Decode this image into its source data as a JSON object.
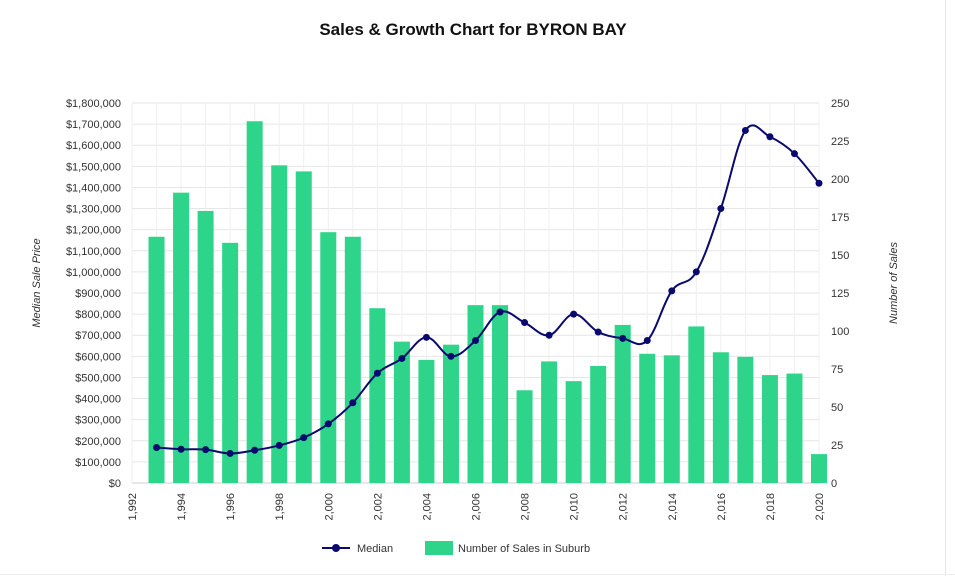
{
  "chart_data": {
    "type": "bar",
    "title": "Sales & Growth Chart for BYRON BAY",
    "xlabel": "",
    "y_left_label": "Median Sale Price",
    "y_right_label": "Number of Sales",
    "x_range": [
      1992,
      2020
    ],
    "x_tick_values": [
      1992,
      1994,
      1996,
      1998,
      2000,
      2002,
      2004,
      2006,
      2008,
      2010,
      2012,
      2014,
      2016,
      2018,
      2020
    ],
    "x_tick_labels": [
      "1,992",
      "1,994",
      "1,996",
      "1,998",
      "2,000",
      "2,002",
      "2,004",
      "2,006",
      "2,008",
      "2,010",
      "2,012",
      "2,014",
      "2,016",
      "2,018",
      "2,020"
    ],
    "y_left_range": [
      0,
      1800000
    ],
    "y_left_tick_values": [
      0,
      100000,
      200000,
      300000,
      400000,
      500000,
      600000,
      700000,
      800000,
      900000,
      1000000,
      1100000,
      1200000,
      1300000,
      1400000,
      1500000,
      1600000,
      1700000,
      1800000
    ],
    "y_left_tick_labels": [
      "$0",
      "$100,000",
      "$200,000",
      "$300,000",
      "$400,000",
      "$500,000",
      "$600,000",
      "$700,000",
      "$800,000",
      "$900,000",
      "$1,000,000",
      "$1,100,000",
      "$1,200,000",
      "$1,300,000",
      "$1,400,000",
      "$1,500,000",
      "$1,600,000",
      "$1,700,000",
      "$1,800,000"
    ],
    "y_right_range": [
      0,
      250
    ],
    "y_right_tick_values": [
      0,
      25,
      50,
      75,
      100,
      125,
      150,
      175,
      200,
      225,
      250
    ],
    "y_right_tick_labels": [
      "0",
      "25",
      "50",
      "75",
      "100",
      "125",
      "150",
      "175",
      "200",
      "225",
      "250"
    ],
    "grid": true,
    "legend_position": "bottom",
    "series": [
      {
        "name": "Median",
        "type": "line",
        "axis": "left",
        "color": "#0a0a6e",
        "x": [
          1993,
          1994,
          1995,
          1996,
          1997,
          1998,
          1999,
          2000,
          2001,
          2002,
          2003,
          2004,
          2005,
          2006,
          2007,
          2008,
          2009,
          2010,
          2011,
          2012,
          2013,
          2014,
          2015,
          2016,
          2017,
          2018,
          2019,
          2020
        ],
        "values": [
          168000,
          160000,
          158000,
          140000,
          155000,
          178000,
          215000,
          280000,
          380000,
          520000,
          590000,
          690000,
          600000,
          675000,
          810000,
          760000,
          700000,
          800000,
          715000,
          685000,
          675000,
          910000,
          1000000,
          1300000,
          1670000,
          1640000,
          1560000,
          1420000
        ]
      },
      {
        "name": "Number of Sales in Suburb",
        "type": "bar",
        "axis": "right",
        "color": "#2dd48a",
        "x": [
          1993,
          1994,
          1995,
          1996,
          1997,
          1998,
          1999,
          2000,
          2001,
          2002,
          2003,
          2004,
          2005,
          2006,
          2007,
          2008,
          2009,
          2010,
          2011,
          2012,
          2013,
          2014,
          2015,
          2016,
          2017,
          2018,
          2019,
          2020
        ],
        "values": [
          162,
          191,
          179,
          158,
          238,
          209,
          205,
          165,
          162,
          115,
          93,
          81,
          91,
          117,
          117,
          61,
          80,
          67,
          77,
          104,
          85,
          84,
          103,
          86,
          83,
          71,
          72,
          19
        ]
      }
    ]
  }
}
